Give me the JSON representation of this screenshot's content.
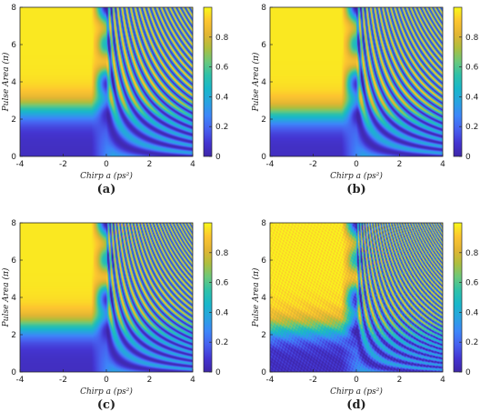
{
  "colors": {
    "colormap": [
      "#3e26a8",
      "#4435d2",
      "#4760ef",
      "#3d86f9",
      "#29a3e0",
      "#19b7ca",
      "#2fc1a9",
      "#6bc87b",
      "#aebe3e",
      "#e2b533",
      "#fdc530",
      "#f9f91a"
    ]
  },
  "chart_data": [
    {
      "type": "heatmap",
      "panel_label": "(a)",
      "xlabel": "Chirp a (ps²)",
      "ylabel": "Pulse Area (π)",
      "xlim": [
        -4,
        4
      ],
      "ylim": [
        0,
        8
      ],
      "xticks": [
        "-4",
        "-2",
        "0",
        "2",
        "4"
      ],
      "yticks": [
        "0",
        "2",
        "4",
        "6",
        "8"
      ],
      "colorbar": {
        "range": [
          0,
          1
        ],
        "ticks": [
          "0",
          "0.2",
          "0.4",
          "0.6",
          "0.8"
        ]
      },
      "model": {
        "threshold": 2.5,
        "fringe_k": 2.2,
        "ripple": 0.0,
        "noise": 0.0
      }
    },
    {
      "type": "heatmap",
      "panel_label": "(b)",
      "xlabel": "Chirp a (ps²)",
      "ylabel": "Pulse Area (π)",
      "xlim": [
        -4,
        4
      ],
      "ylim": [
        0,
        8
      ],
      "xticks": [
        "-4",
        "-2",
        "0",
        "2",
        "4"
      ],
      "yticks": [
        "0",
        "2",
        "4",
        "6",
        "8"
      ],
      "colorbar": {
        "range": [
          0,
          1
        ],
        "ticks": [
          "0",
          "0.2",
          "0.4",
          "0.6",
          "0.8"
        ]
      },
      "model": {
        "threshold": 2.2,
        "fringe_k": 2.4,
        "ripple": 0.0,
        "noise": 0.0
      }
    },
    {
      "type": "heatmap",
      "panel_label": "(c)",
      "xlabel": "Chirp a (ps²)",
      "ylabel": "Pulse Area (π)",
      "xlim": [
        -4,
        4
      ],
      "ylim": [
        0,
        8
      ],
      "xticks": [
        "-4",
        "-2",
        "0",
        "2",
        "4"
      ],
      "yticks": [
        "0",
        "2",
        "4",
        "6",
        "8"
      ],
      "colorbar": {
        "range": [
          0,
          1
        ],
        "ticks": [
          "0",
          "0.2",
          "0.4",
          "0.6",
          "0.8"
        ]
      },
      "model": {
        "threshold": 2.4,
        "fringe_k": 2.9,
        "ripple": 0.0,
        "noise": 0.0
      }
    },
    {
      "type": "heatmap",
      "panel_label": "(d)",
      "xlabel": "Chirp a (ps²)",
      "ylabel": "Pulse Area (π)",
      "xlim": [
        -4,
        4
      ],
      "ylim": [
        0,
        8
      ],
      "xticks": [
        "-4",
        "-2",
        "0",
        "2",
        "4"
      ],
      "yticks": [
        "0",
        "2",
        "4",
        "6",
        "8"
      ],
      "colorbar": {
        "range": [
          0,
          1
        ],
        "ticks": [
          "0",
          "0.2",
          "0.4",
          "0.6",
          "0.8"
        ]
      },
      "model": {
        "threshold": 2.2,
        "fringe_k": 3.6,
        "ripple": 0.6,
        "noise": 0.15
      }
    }
  ]
}
